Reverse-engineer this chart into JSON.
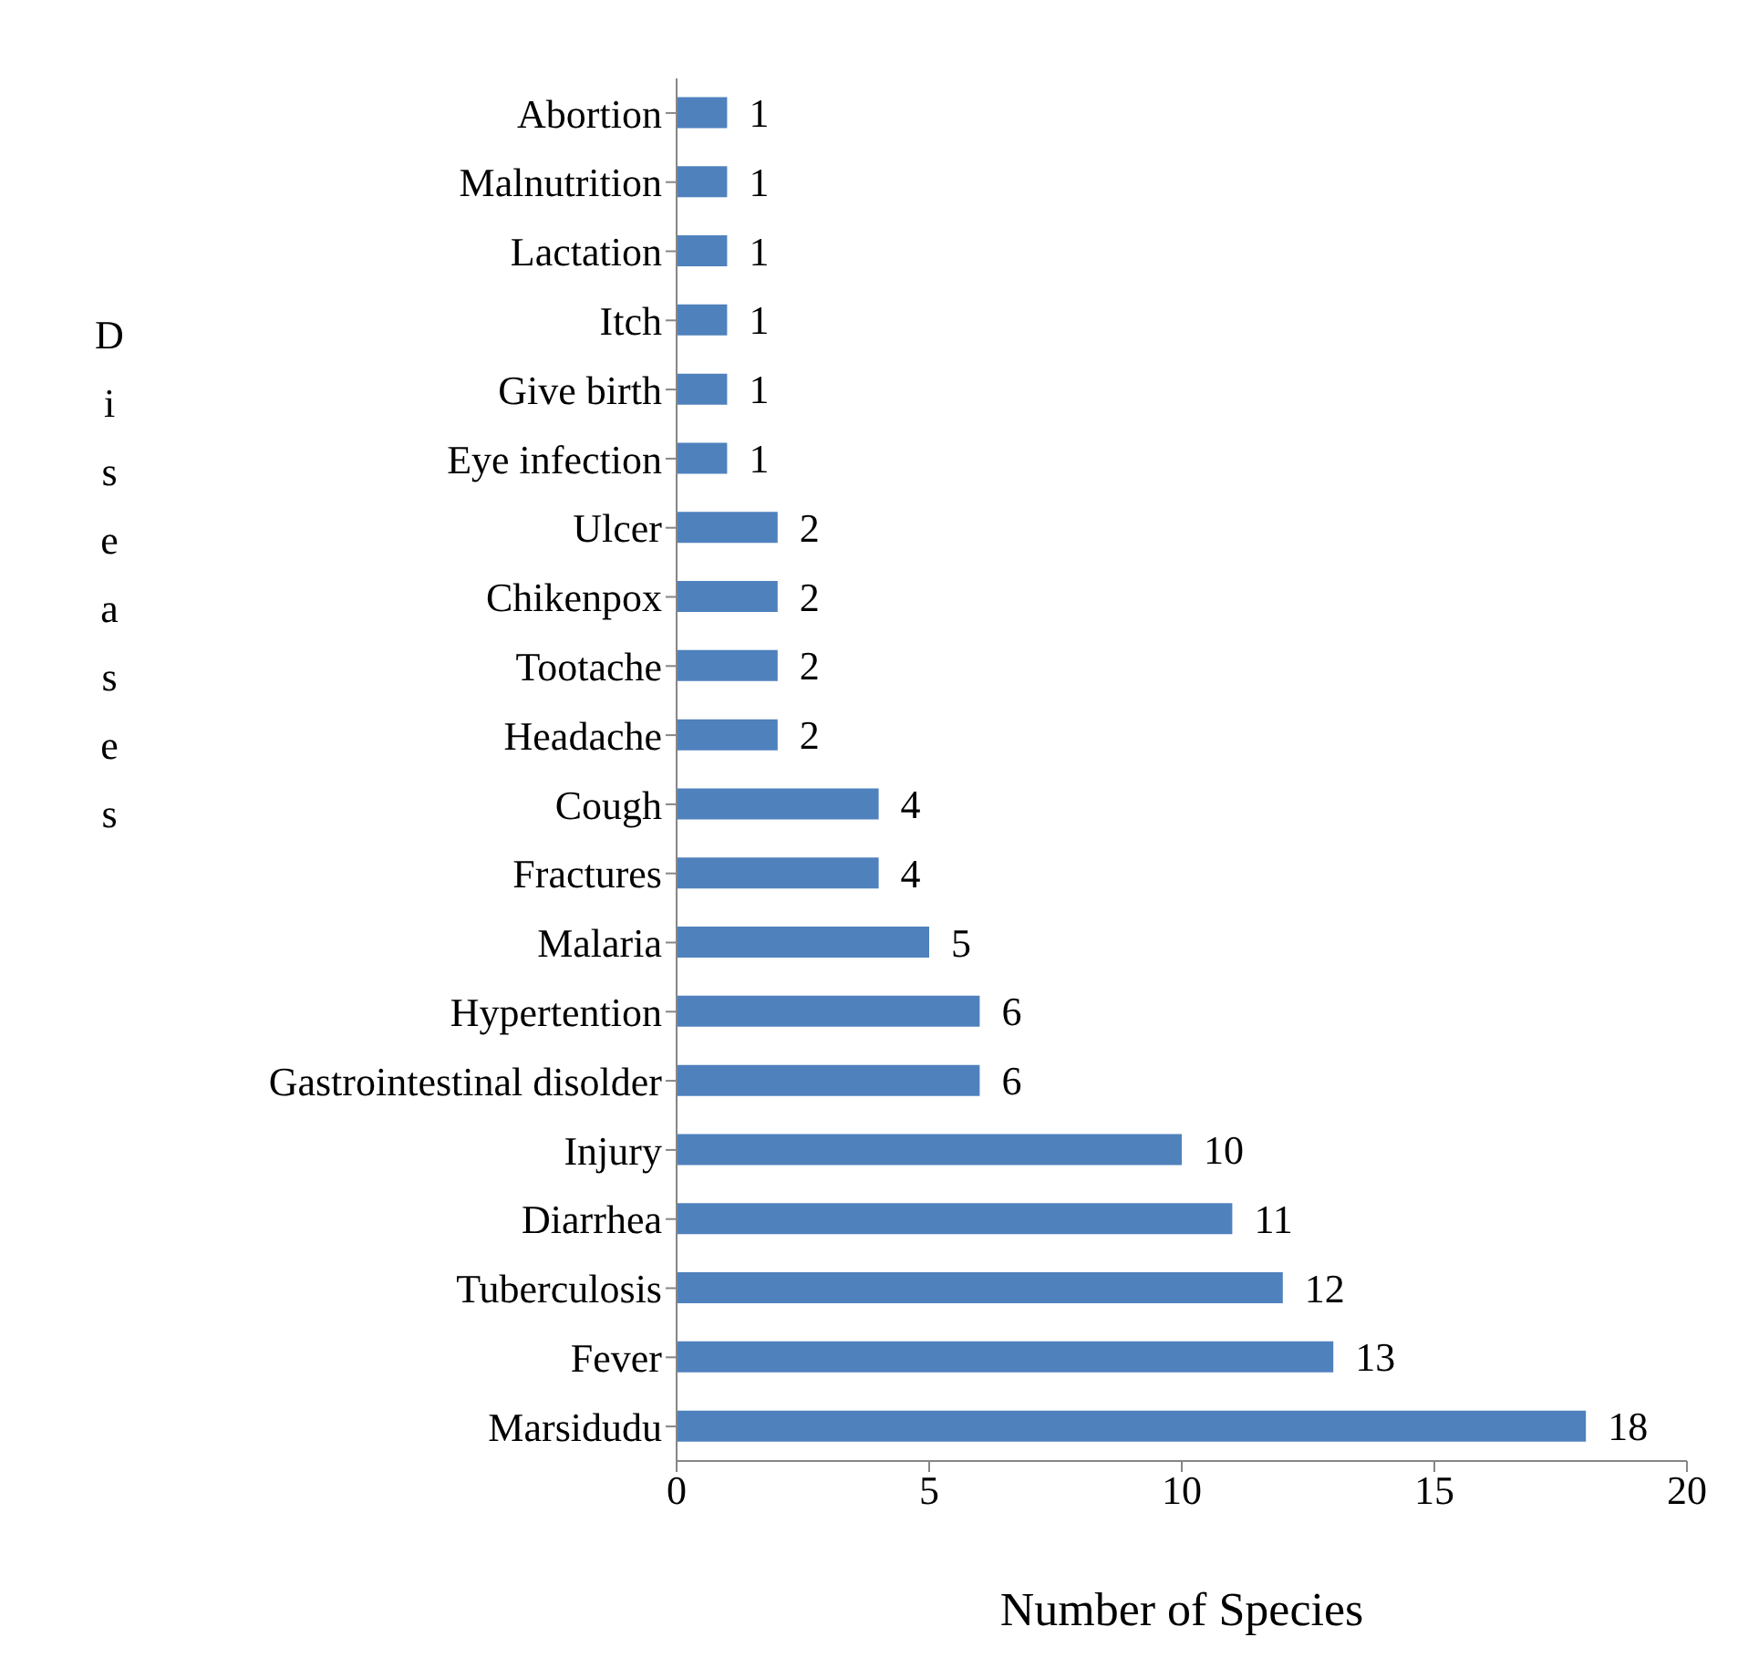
{
  "chart_data": {
    "type": "bar",
    "orientation": "horizontal",
    "xlabel": "Number of Species",
    "ylabel": "Diseases",
    "categories": [
      "Abortion",
      "Malnutrition",
      "Lactation",
      "Itch",
      "Give birth",
      "Eye infection",
      "Ulcer",
      "Chikenpox",
      "Tootache",
      "Headache",
      "Cough",
      "Fractures",
      "Malaria",
      "Hypertention",
      "Gastrointestinal disolder",
      "Injury",
      "Diarrhea",
      "Tuberculosis",
      "Fever",
      "Marsidudu"
    ],
    "values": [
      1,
      1,
      1,
      1,
      1,
      1,
      2,
      2,
      2,
      2,
      4,
      4,
      5,
      6,
      6,
      10,
      11,
      12,
      13,
      18
    ],
    "color": "#4f81bd",
    "xlim": [
      0,
      20
    ],
    "xticks": [
      0,
      5,
      10,
      15,
      20
    ],
    "data_labels": true
  }
}
